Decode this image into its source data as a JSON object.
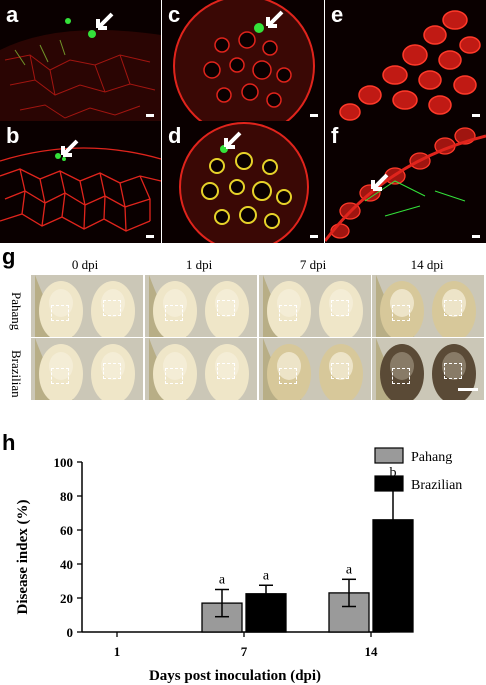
{
  "panels": {
    "micro": [
      {
        "letter": "a"
      },
      {
        "letter": "b"
      },
      {
        "letter": "c"
      },
      {
        "letter": "d"
      },
      {
        "letter": "e"
      },
      {
        "letter": "f"
      }
    ],
    "photo_letter": "g",
    "chart_letter": "h",
    "photo_columns": [
      "0 dpi",
      "1 dpi",
      "7 dpi",
      "14 dpi"
    ],
    "photo_rows": [
      "Pahang",
      "Brazilian"
    ]
  },
  "colors": {
    "tissue_red": "#e0241c",
    "gfp_green": "#34e23a",
    "pahang_bar": "#9a9a9a",
    "brazilian_bar": "#000000"
  },
  "chart_data": {
    "type": "bar",
    "categories": [
      "1",
      "7",
      "14"
    ],
    "series": [
      {
        "name": "Pahang",
        "values": [
          0,
          17,
          23
        ],
        "errors": [
          0,
          8,
          8
        ],
        "letters": [
          "",
          "a",
          "a"
        ]
      },
      {
        "name": "Brazilian",
        "values": [
          0,
          22.5,
          66
        ],
        "errors": [
          0,
          5,
          22
        ],
        "letters": [
          "",
          "a",
          "b"
        ]
      }
    ],
    "xlabel": "Days post inoculation (dpi)",
    "ylabel": "Disease index (%)",
    "ylim": [
      0,
      100
    ],
    "yticks": [
      "0",
      "20",
      "40",
      "60",
      "80",
      "100"
    ],
    "grid": false,
    "legend": "top-right"
  }
}
